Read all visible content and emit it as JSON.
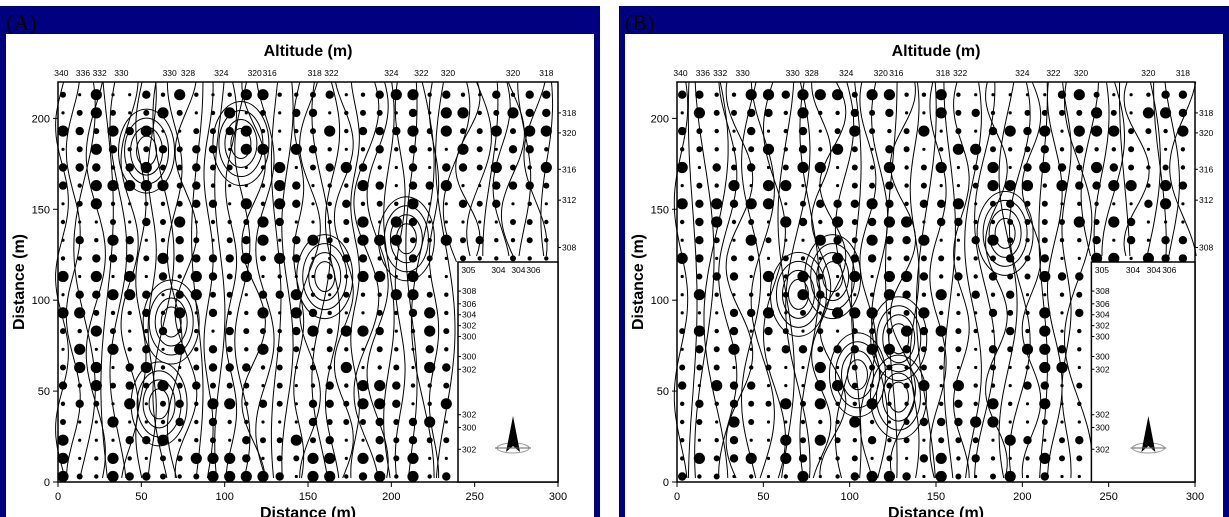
{
  "panels": [
    {
      "label": "(A)",
      "seed": 17
    },
    {
      "label": "(B)",
      "seed": 91
    }
  ],
  "chart_data": [
    {
      "type": "scatter",
      "panel": "(A)",
      "title": "Altitude (m)",
      "xlabel": "Distance (m)",
      "ylabel": "Distance (m)",
      "xlim": [
        0,
        300
      ],
      "ylim": [
        0,
        220
      ],
      "x_ticks": [
        0,
        50,
        100,
        150,
        200,
        250,
        300
      ],
      "y_ticks": [
        0,
        50,
        100,
        150,
        200
      ],
      "top_contour_labels": [
        {
          "x": 2,
          "label": "340"
        },
        {
          "x": 15,
          "label": "336"
        },
        {
          "x": 25,
          "label": "332"
        },
        {
          "x": 38,
          "label": "330"
        },
        {
          "x": 67,
          "label": "330"
        },
        {
          "x": 78,
          "label": "328"
        },
        {
          "x": 98,
          "label": "324"
        },
        {
          "x": 118,
          "label": "320"
        },
        {
          "x": 127,
          "label": "316"
        },
        {
          "x": 154,
          "label": "318"
        },
        {
          "x": 164,
          "label": "322"
        },
        {
          "x": 200,
          "label": "324"
        },
        {
          "x": 218,
          "label": "322"
        },
        {
          "x": 234,
          "label": "320"
        },
        {
          "x": 273,
          "label": "320"
        },
        {
          "x": 293,
          "label": "318"
        }
      ],
      "right_contour_labels": [
        {
          "y": 203,
          "label": "318"
        },
        {
          "y": 192,
          "label": "320"
        },
        {
          "y": 172,
          "label": "316"
        },
        {
          "y": 155,
          "label": "312"
        },
        {
          "y": 129,
          "label": "308"
        },
        {
          "y": 105,
          "label": "308"
        },
        {
          "y": 98,
          "label": "306"
        },
        {
          "y": 92,
          "label": "304"
        },
        {
          "y": 86,
          "label": "302"
        },
        {
          "y": 80,
          "label": "300"
        },
        {
          "y": 69,
          "label": "300"
        },
        {
          "y": 62,
          "label": "302"
        },
        {
          "y": 37,
          "label": "302"
        },
        {
          "y": 30,
          "label": "300"
        },
        {
          "y": 18,
          "label": "302"
        }
      ],
      "inset_top_labels": [
        {
          "x": 242,
          "label": "305"
        },
        {
          "x": 260,
          "label": "304"
        },
        {
          "x": 272,
          "label": "304"
        },
        {
          "x": 281,
          "label": "306"
        }
      ],
      "inset": {
        "x": [
          240,
          300
        ],
        "y": [
          0,
          121
        ],
        "content": "north-arrow"
      }
    },
    {
      "type": "scatter",
      "panel": "(B)",
      "title": "Altitude (m)",
      "xlabel": "Distance (m)",
      "ylabel": "Distance (m)",
      "xlim": [
        0,
        300
      ],
      "ylim": [
        0,
        220
      ],
      "x_ticks": [
        0,
        50,
        100,
        150,
        200,
        250,
        300
      ],
      "y_ticks": [
        0,
        50,
        100,
        150,
        200
      ],
      "top_contour_labels": [
        {
          "x": 2,
          "label": "340"
        },
        {
          "x": 15,
          "label": "336"
        },
        {
          "x": 25,
          "label": "332"
        },
        {
          "x": 38,
          "label": "330"
        },
        {
          "x": 67,
          "label": "330"
        },
        {
          "x": 78,
          "label": "328"
        },
        {
          "x": 98,
          "label": "324"
        },
        {
          "x": 118,
          "label": "320"
        },
        {
          "x": 127,
          "label": "316"
        },
        {
          "x": 154,
          "label": "318"
        },
        {
          "x": 164,
          "label": "322"
        },
        {
          "x": 200,
          "label": "324"
        },
        {
          "x": 218,
          "label": "322"
        },
        {
          "x": 234,
          "label": "320"
        },
        {
          "x": 273,
          "label": "320"
        },
        {
          "x": 293,
          "label": "318"
        }
      ],
      "right_contour_labels": [
        {
          "y": 203,
          "label": "318"
        },
        {
          "y": 192,
          "label": "320"
        },
        {
          "y": 172,
          "label": "316"
        },
        {
          "y": 155,
          "label": "312"
        },
        {
          "y": 129,
          "label": "308"
        },
        {
          "y": 105,
          "label": "308"
        },
        {
          "y": 98,
          "label": "306"
        },
        {
          "y": 92,
          "label": "304"
        },
        {
          "y": 86,
          "label": "302"
        },
        {
          "y": 80,
          "label": "300"
        },
        {
          "y": 69,
          "label": "300"
        },
        {
          "y": 62,
          "label": "302"
        },
        {
          "y": 37,
          "label": "302"
        },
        {
          "y": 30,
          "label": "300"
        },
        {
          "y": 18,
          "label": "302"
        }
      ],
      "inset_top_labels": [
        {
          "x": 242,
          "label": "305"
        },
        {
          "x": 260,
          "label": "304"
        },
        {
          "x": 272,
          "label": "304"
        },
        {
          "x": 281,
          "label": "306"
        }
      ],
      "inset": {
        "x": [
          240,
          300
        ],
        "y": [
          0,
          121
        ],
        "content": "north-arrow"
      }
    }
  ]
}
